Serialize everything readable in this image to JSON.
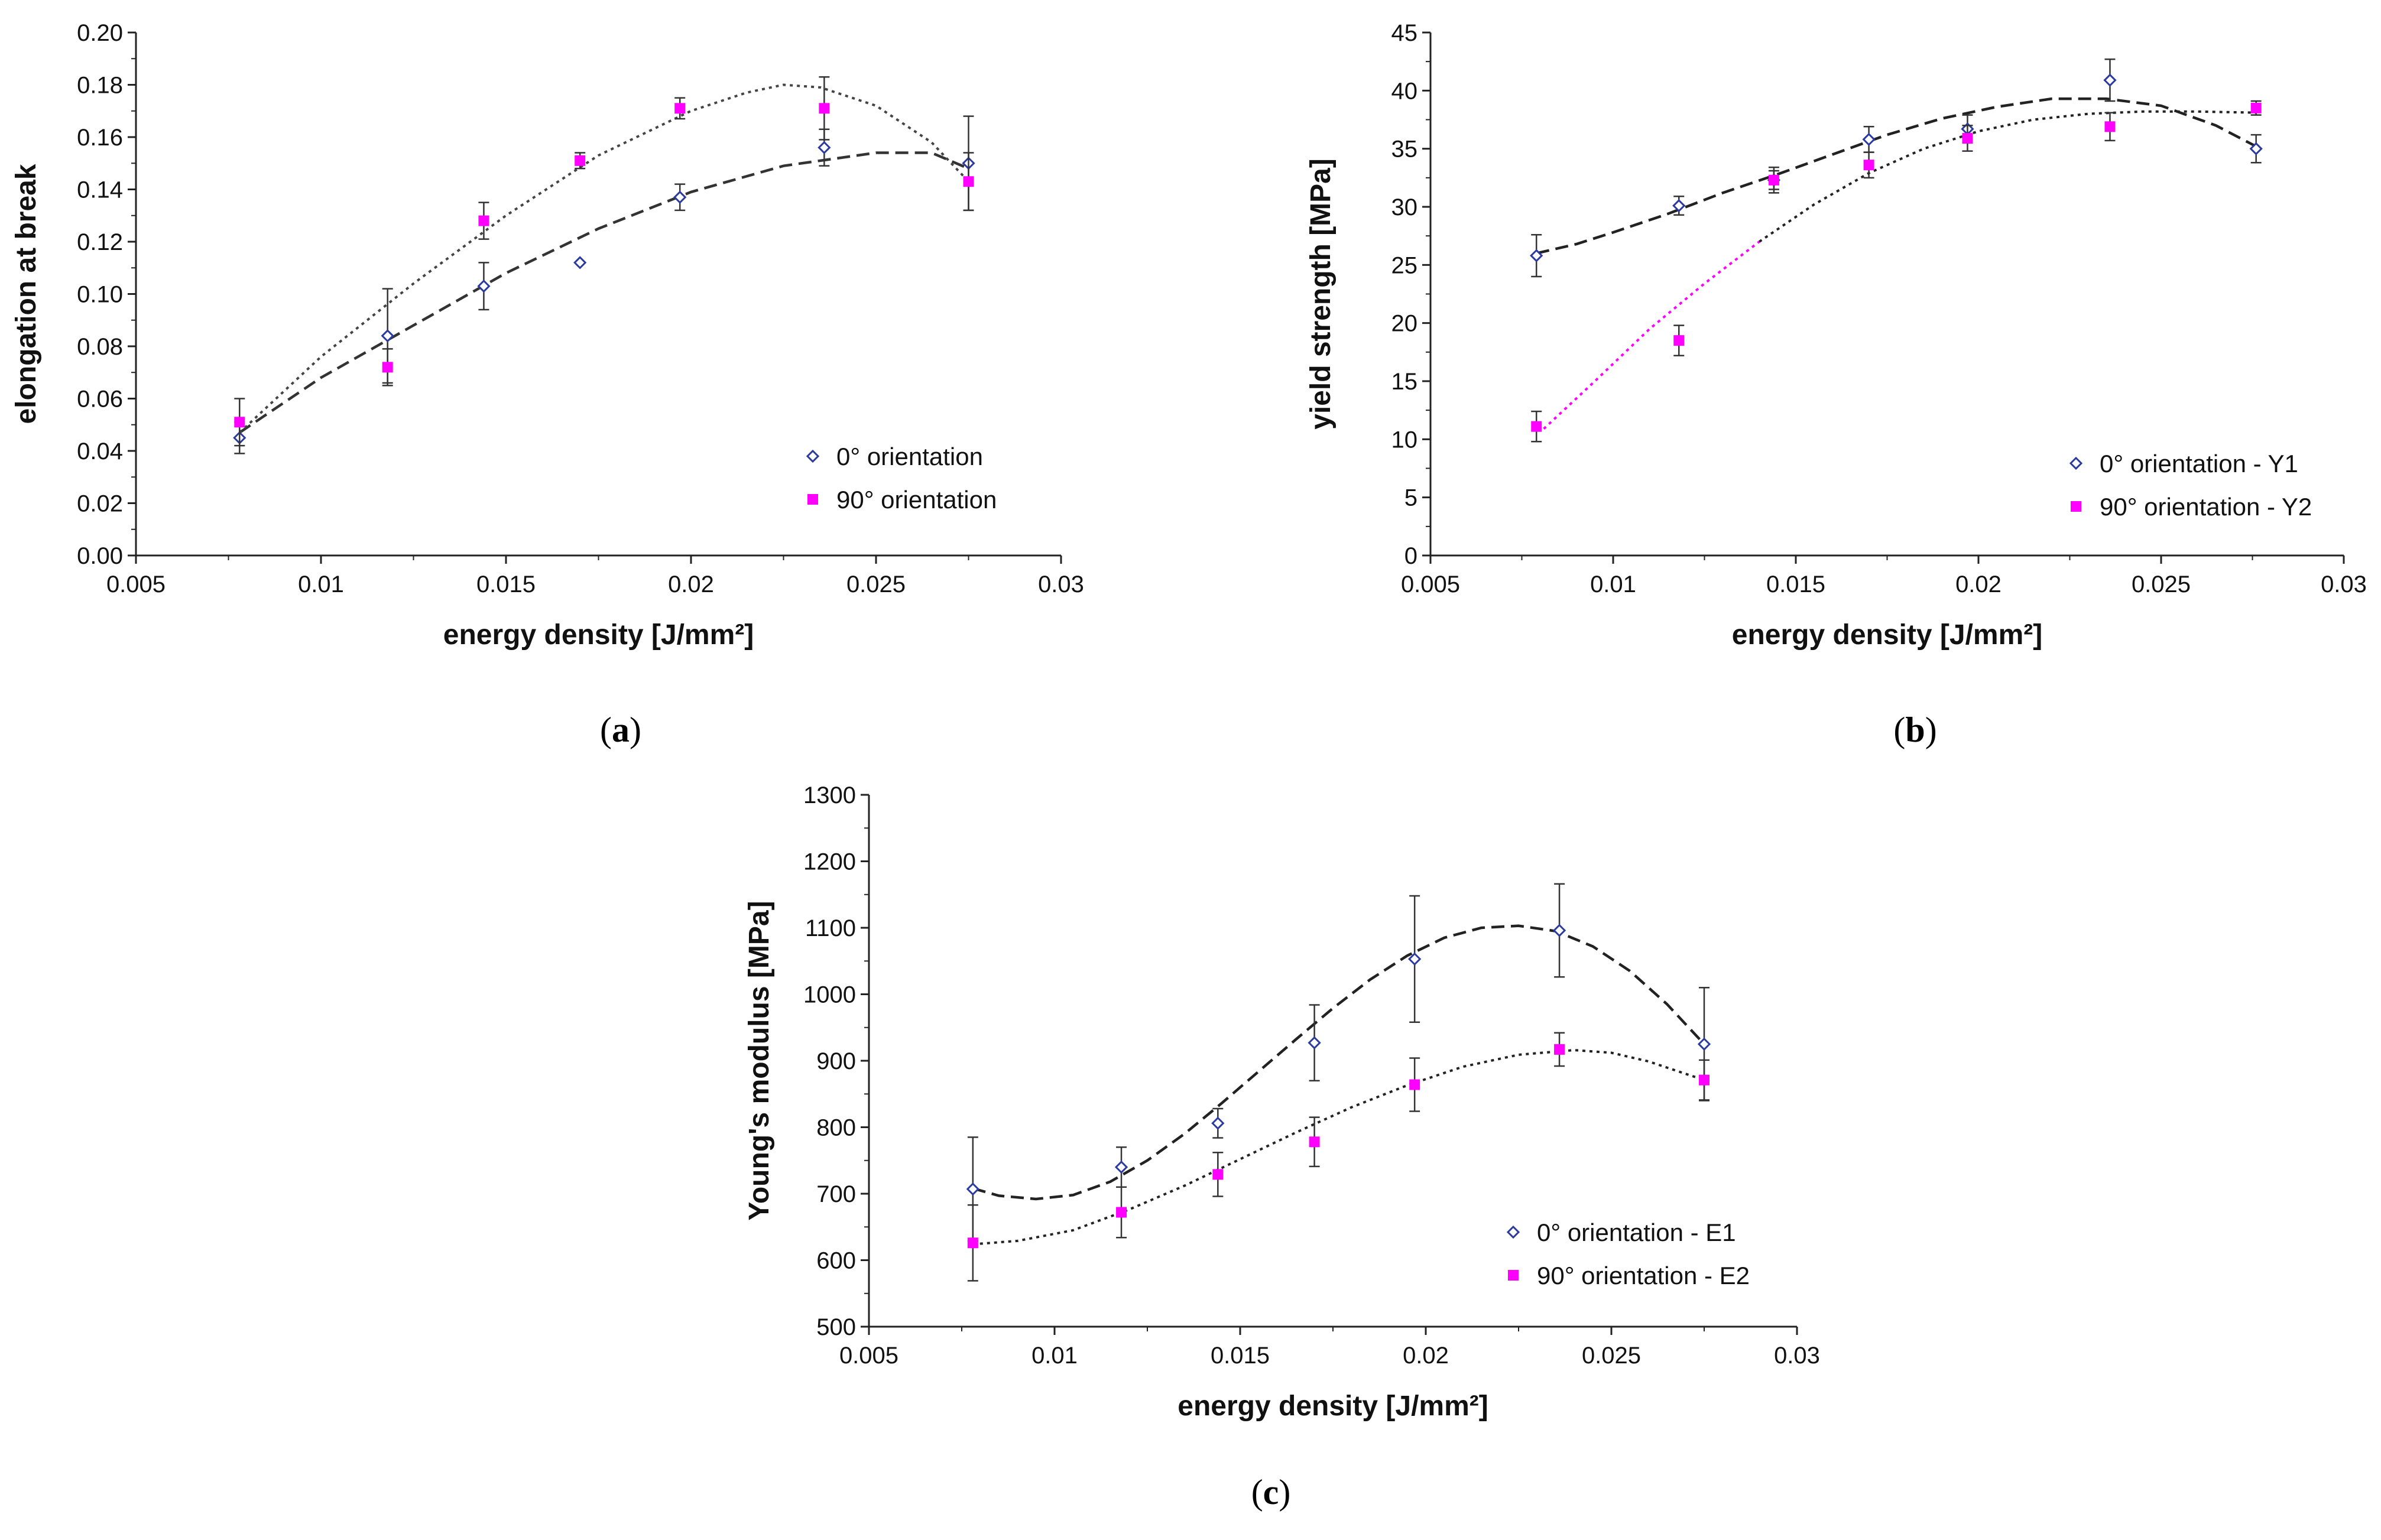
{
  "chart_data": [
    {
      "id": "a",
      "type": "scatter",
      "panel_label": "a",
      "xlabel": "energy density [J/mm²]",
      "ylabel": "elongation at break",
      "xlim": [
        0.005,
        0.03
      ],
      "ylim": [
        0,
        0.2
      ],
      "x_ticks": [
        "0.005",
        "0.01",
        "0.015",
        "0.02",
        "0.025",
        "0.03"
      ],
      "y_ticks": [
        "0.00",
        "0.02",
        "0.04",
        "0.06",
        "0.08",
        "0.10",
        "0.12",
        "0.14",
        "0.16",
        "0.18",
        "0.20"
      ],
      "legend_position": "bottom-right",
      "series": [
        {
          "name": "0° orientation",
          "marker": "open-diamond",
          "color": "#2b3aa0",
          "line_style": "dashed",
          "line_color": "#333333",
          "points": [
            {
              "x": 0.0078,
              "y": 0.045,
              "err": 0.006
            },
            {
              "x": 0.0118,
              "y": 0.084,
              "err": 0.018
            },
            {
              "x": 0.0144,
              "y": 0.103,
              "err": 0.009
            },
            {
              "x": 0.017,
              "y": 0.112,
              "err": 0
            },
            {
              "x": 0.0197,
              "y": 0.137,
              "err": 0.005
            },
            {
              "x": 0.0236,
              "y": 0.156,
              "err": 0.007
            },
            {
              "x": 0.0275,
              "y": 0.15,
              "err": 0.018
            }
          ],
          "fit": [
            [
              0.0078,
              0.047
            ],
            [
              0.01,
              0.068
            ],
            [
              0.0125,
              0.088
            ],
            [
              0.015,
              0.108
            ],
            [
              0.0175,
              0.125
            ],
            [
              0.02,
              0.139
            ],
            [
              0.0225,
              0.149
            ],
            [
              0.025,
              0.154
            ],
            [
              0.0265,
              0.154
            ],
            [
              0.0275,
              0.148
            ]
          ]
        },
        {
          "name": "90° orientation",
          "marker": "filled-square",
          "color": "#ff00ff",
          "line_style": "dotted",
          "line_color": "#444444",
          "points": [
            {
              "x": 0.0078,
              "y": 0.051,
              "err": 0.009
            },
            {
              "x": 0.0118,
              "y": 0.072,
              "err": 0.007
            },
            {
              "x": 0.0144,
              "y": 0.128,
              "err": 0.007
            },
            {
              "x": 0.017,
              "y": 0.151,
              "err": 0.003
            },
            {
              "x": 0.0197,
              "y": 0.171,
              "err": 0.004
            },
            {
              "x": 0.0236,
              "y": 0.171,
              "err": 0.012
            },
            {
              "x": 0.0275,
              "y": 0.143,
              "err": 0.011
            }
          ],
          "fit": [
            [
              0.0078,
              0.047
            ],
            [
              0.01,
              0.076
            ],
            [
              0.0125,
              0.104
            ],
            [
              0.015,
              0.13
            ],
            [
              0.0175,
              0.153
            ],
            [
              0.02,
              0.17
            ],
            [
              0.0215,
              0.177
            ],
            [
              0.0225,
              0.18
            ],
            [
              0.0235,
              0.179
            ],
            [
              0.025,
              0.172
            ],
            [
              0.0265,
              0.158
            ],
            [
              0.0275,
              0.143
            ]
          ]
        }
      ]
    },
    {
      "id": "b",
      "type": "scatter",
      "panel_label": "b",
      "xlabel": "energy density [J/mm²]",
      "ylabel": "yield strength [MPa]",
      "xlim": [
        0.005,
        0.03
      ],
      "ylim": [
        0,
        45
      ],
      "x_ticks": [
        "0.005",
        "0.01",
        "0.015",
        "0.02",
        "0.025",
        "0.03"
      ],
      "y_ticks": [
        "0",
        "5",
        "10",
        "15",
        "20",
        "25",
        "30",
        "35",
        "40",
        "45"
      ],
      "legend_position": "bottom-right",
      "series": [
        {
          "name": "0° orientation - Y1",
          "marker": "open-diamond",
          "color": "#2b3aa0",
          "line_style": "dashed",
          "line_color": "#222222",
          "points": [
            {
              "x": 0.0079,
              "y": 25.8,
              "err": 1.8
            },
            {
              "x": 0.0118,
              "y": 30.1,
              "err": 0.8
            },
            {
              "x": 0.0144,
              "y": 32.3,
              "err": 1.1
            },
            {
              "x": 0.017,
              "y": 35.8,
              "err": 1.1
            },
            {
              "x": 0.0197,
              "y": 36.7,
              "err": 1.2
            },
            {
              "x": 0.0236,
              "y": 40.9,
              "err": 1.8
            },
            {
              "x": 0.0276,
              "y": 35.0,
              "err": 1.2
            }
          ],
          "fit": [
            [
              0.0079,
              26.0
            ],
            [
              0.009,
              26.8
            ],
            [
              0.01,
              27.8
            ],
            [
              0.0115,
              29.4
            ],
            [
              0.013,
              31.2
            ],
            [
              0.0145,
              32.8
            ],
            [
              0.016,
              34.5
            ],
            [
              0.0175,
              36.2
            ],
            [
              0.019,
              37.6
            ],
            [
              0.0205,
              38.6
            ],
            [
              0.022,
              39.3
            ],
            [
              0.0235,
              39.3
            ],
            [
              0.025,
              38.7
            ],
            [
              0.0265,
              37.0
            ],
            [
              0.0276,
              35.2
            ]
          ]
        },
        {
          "name": "90° orientation - Y2",
          "marker": "filled-square",
          "color": "#ff00ff",
          "line_style": "dotted",
          "line_color": "#222222",
          "fit_head_color": "#ff00ff",
          "fit_head_until_x": 0.014,
          "points": [
            {
              "x": 0.0079,
              "y": 11.1,
              "err": 1.3
            },
            {
              "x": 0.0118,
              "y": 18.5,
              "err": 1.3
            },
            {
              "x": 0.0144,
              "y": 32.3,
              "err": 0.8
            },
            {
              "x": 0.017,
              "y": 33.6,
              "err": 1.1
            },
            {
              "x": 0.0197,
              "y": 35.9,
              "err": 1.1
            },
            {
              "x": 0.0236,
              "y": 36.9,
              "err": 1.2
            },
            {
              "x": 0.0276,
              "y": 38.5,
              "err": 0.6
            }
          ],
          "fit": [
            [
              0.0081,
              10.9
            ],
            [
              0.0095,
              15.0
            ],
            [
              0.011,
              19.5
            ],
            [
              0.0125,
              23.4
            ],
            [
              0.014,
              27.0
            ],
            [
              0.0155,
              30.2
            ],
            [
              0.017,
              32.9
            ],
            [
              0.0185,
              35.0
            ],
            [
              0.02,
              36.5
            ],
            [
              0.0215,
              37.5
            ],
            [
              0.023,
              38.0
            ],
            [
              0.0245,
              38.2
            ],
            [
              0.026,
              38.2
            ],
            [
              0.0276,
              38.1
            ]
          ]
        }
      ]
    },
    {
      "id": "c",
      "type": "scatter",
      "panel_label": "c",
      "xlabel": "energy density [J/mm²]",
      "ylabel": "Young's modulus [MPa]",
      "xlim": [
        0.005,
        0.03
      ],
      "ylim": [
        500,
        1300
      ],
      "x_ticks": [
        "0.005",
        "0.01",
        "0.015",
        "0.02",
        "0.025",
        "0.03"
      ],
      "y_ticks": [
        "500",
        "600",
        "700",
        "800",
        "900",
        "1000",
        "1100",
        "1200",
        "1300"
      ],
      "legend_position": "bottom-right",
      "series": [
        {
          "name": "0° orientation - E1",
          "marker": "open-diamond",
          "color": "#2b3aa0",
          "line_style": "dashed",
          "line_color": "#222222",
          "points": [
            {
              "x": 0.0078,
              "y": 707,
              "err": 78
            },
            {
              "x": 0.0118,
              "y": 740,
              "err": 30
            },
            {
              "x": 0.0144,
              "y": 806,
              "err": 22
            },
            {
              "x": 0.017,
              "y": 927,
              "err": 57
            },
            {
              "x": 0.0197,
              "y": 1053,
              "err": 95
            },
            {
              "x": 0.0236,
              "y": 1096,
              "err": 70
            },
            {
              "x": 0.0275,
              "y": 925,
              "err": 85
            }
          ],
          "fit": [
            [
              0.0078,
              708
            ],
            [
              0.0085,
              697
            ],
            [
              0.0095,
              692
            ],
            [
              0.0105,
              698
            ],
            [
              0.0115,
              718
            ],
            [
              0.0125,
              750
            ],
            [
              0.0135,
              790
            ],
            [
              0.0145,
              836
            ],
            [
              0.0155,
              884
            ],
            [
              0.0165,
              932
            ],
            [
              0.0175,
              979
            ],
            [
              0.0185,
              1022
            ],
            [
              0.0195,
              1058
            ],
            [
              0.0205,
              1085
            ],
            [
              0.0215,
              1100
            ],
            [
              0.0225,
              1103
            ],
            [
              0.0235,
              1095
            ],
            [
              0.0245,
              1072
            ],
            [
              0.0255,
              1035
            ],
            [
              0.0265,
              985
            ],
            [
              0.0275,
              925
            ]
          ]
        },
        {
          "name": "90° orientation - E2",
          "marker": "filled-square",
          "color": "#ff00ff",
          "line_style": "dotted",
          "line_color": "#222222",
          "points": [
            {
              "x": 0.0078,
              "y": 626,
              "err": 57
            },
            {
              "x": 0.0118,
              "y": 672,
              "err": 38
            },
            {
              "x": 0.0144,
              "y": 729,
              "err": 33
            },
            {
              "x": 0.017,
              "y": 778,
              "err": 37
            },
            {
              "x": 0.0197,
              "y": 864,
              "err": 40
            },
            {
              "x": 0.0236,
              "y": 917,
              "err": 25
            },
            {
              "x": 0.0275,
              "y": 871,
              "err": 30
            }
          ],
          "fit": [
            [
              0.0078,
              624
            ],
            [
              0.009,
              629
            ],
            [
              0.0105,
              645
            ],
            [
              0.012,
              676
            ],
            [
              0.0135,
              712
            ],
            [
              0.015,
              752
            ],
            [
              0.0165,
              792
            ],
            [
              0.018,
              830
            ],
            [
              0.0195,
              863
            ],
            [
              0.021,
              891
            ],
            [
              0.0225,
              909
            ],
            [
              0.024,
              916
            ],
            [
              0.025,
              912
            ],
            [
              0.026,
              899
            ],
            [
              0.0275,
              871
            ]
          ]
        }
      ]
    }
  ]
}
